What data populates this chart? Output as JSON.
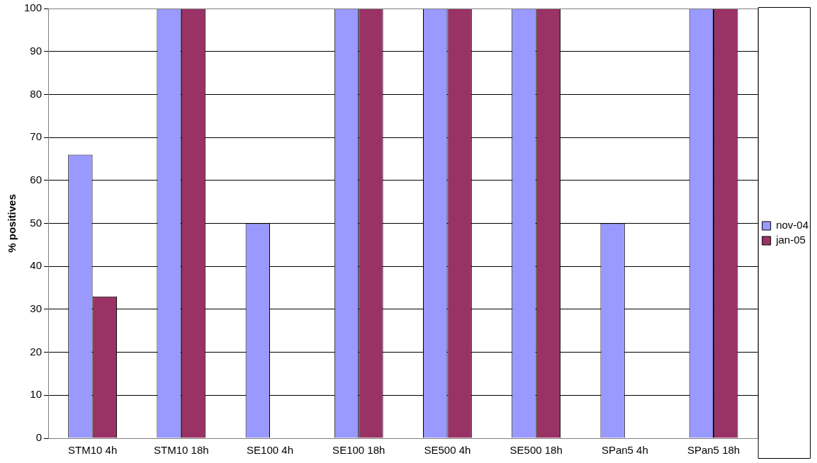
{
  "chart_data": {
    "type": "bar",
    "ylabel": "% positives",
    "categories": [
      "STM10 4h",
      "STM10 18h",
      "SE100 4h",
      "SE100 18h",
      "SE500 4h",
      "SE500 18h",
      "SPan5 4h",
      "SPan5 18h"
    ],
    "series": [
      {
        "name": "nov-04",
        "color": "#9999ff",
        "values": [
          66,
          100,
          50,
          100,
          100,
          100,
          50,
          100
        ]
      },
      {
        "name": "jan-05",
        "color": "#993366",
        "values": [
          33,
          100,
          0,
          100,
          100,
          100,
          0,
          100
        ]
      }
    ],
    "ylim": [
      0,
      100
    ],
    "yticks": [
      0,
      10,
      20,
      30,
      40,
      50,
      60,
      70,
      80,
      90,
      100
    ],
    "grid": "y",
    "legend": "right"
  }
}
